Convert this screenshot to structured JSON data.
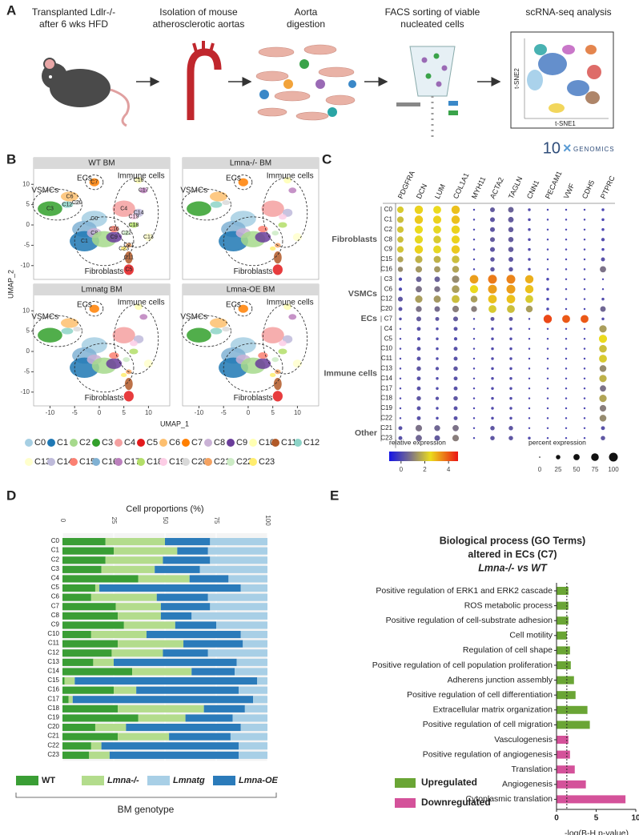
{
  "panel_labels": [
    "A",
    "B",
    "C",
    "D",
    "E"
  ],
  "workflow": {
    "steps": [
      [
        "Transplanted Ldlr-/-",
        "after 6 wks HFD"
      ],
      [
        "Isolation of mouse",
        "atherosclerotic aortas"
      ],
      [
        "Aorta",
        "digestion"
      ],
      [
        "FACS sorting of viable",
        "nucleated cells"
      ],
      [
        "scRNA-seq analysis"
      ]
    ],
    "tsne_xlabel": "t-SNE1",
    "tsne_ylabel": "t-SNE2",
    "logo_number": "10",
    "logo_text": "GENOMICS"
  },
  "umap": {
    "panels": [
      "WT BM",
      "Lmna-/- BM",
      "Lmnatg BM",
      "Lmna-OE BM"
    ],
    "xlabel": "UMAP_1",
    "ylabel": "UMAP_2",
    "xlim": [
      -13,
      14
    ],
    "ylim": [
      -13,
      13
    ],
    "xticks": [
      -10,
      -5,
      0,
      5,
      10
    ],
    "yticks": [
      -10,
      -5,
      0,
      5,
      10
    ],
    "regions": [
      "VSMCs",
      "ECs",
      "Immune cells",
      "Fibroblasts"
    ],
    "clusters": [
      {
        "name": "C0",
        "color": "#a6cfe3"
      },
      {
        "name": "C1",
        "color": "#1f78b4"
      },
      {
        "name": "C2",
        "color": "#a6d98c"
      },
      {
        "name": "C3",
        "color": "#33a02c"
      },
      {
        "name": "C4",
        "color": "#f4a0a0"
      },
      {
        "name": "C5",
        "color": "#e31a1c"
      },
      {
        "name": "C6",
        "color": "#fdbf6f"
      },
      {
        "name": "C7",
        "color": "#ff7f00"
      },
      {
        "name": "C8",
        "color": "#cab2d6"
      },
      {
        "name": "C9",
        "color": "#6a3d9a"
      },
      {
        "name": "C10",
        "color": "#ffffb3"
      },
      {
        "name": "C11",
        "color": "#b15928"
      },
      {
        "name": "C12",
        "color": "#8dd3c7"
      },
      {
        "name": "C13",
        "color": "#ffffcc"
      },
      {
        "name": "C14",
        "color": "#bebada"
      },
      {
        "name": "C15",
        "color": "#fb8072"
      },
      {
        "name": "C16",
        "color": "#80b1d3"
      },
      {
        "name": "C17",
        "color": "#bc80bd"
      },
      {
        "name": "C18",
        "color": "#b3de69"
      },
      {
        "name": "C19",
        "color": "#fccde5"
      },
      {
        "name": "C20",
        "color": "#d9d9d9"
      },
      {
        "name": "C21",
        "color": "#f4a261"
      },
      {
        "name": "C22",
        "color": "#ccebc5"
      },
      {
        "name": "C23",
        "color": "#ffed6f"
      }
    ]
  },
  "dotplot": {
    "genes": [
      "PDGFRA",
      "DCN",
      "LUM",
      "COL1A1",
      "MYH11",
      "ACTA2",
      "TAGLN",
      "CNN1",
      "PECAM1",
      "VWF",
      "CDH5",
      "PTPRC"
    ],
    "color_title": "relative expression",
    "color_lim": [
      -1,
      4.8
    ],
    "color_ticks": [
      0,
      2,
      4
    ],
    "size_title": "percent expression",
    "size_ticks": [
      0,
      25,
      50,
      75,
      100
    ],
    "groups": [
      {
        "label": "Fibroblasts",
        "clusters": [
          "C0",
          "C1",
          "C2",
          "C8",
          "C9",
          "C15",
          "C16"
        ],
        "expression": [
          [
            2.2,
            2.6,
            2.5,
            2.8,
            0,
            0.4,
            0.5,
            0.1,
            0,
            0,
            0,
            0
          ],
          [
            2.0,
            2.7,
            2.6,
            2.8,
            0,
            0.3,
            0.4,
            0.1,
            0,
            0,
            0,
            0
          ],
          [
            2.1,
            2.5,
            2.4,
            2.6,
            0,
            0.3,
            0.4,
            0.1,
            0,
            0,
            0,
            0
          ],
          [
            2.0,
            2.4,
            2.2,
            2.6,
            0,
            0.4,
            0.4,
            0.1,
            0,
            0,
            0,
            0.1
          ],
          [
            2.1,
            2.6,
            2.4,
            2.7,
            0,
            0.3,
            0.4,
            0.1,
            0,
            0,
            0,
            0
          ],
          [
            1.6,
            1.8,
            1.8,
            2.0,
            0,
            0.3,
            0.3,
            0.1,
            0,
            0,
            0,
            0.2
          ],
          [
            1.2,
            1.4,
            1.4,
            1.6,
            0,
            0.3,
            0.3,
            0.1,
            0,
            0,
            0,
            0.8
          ]
        ],
        "percent": [
          [
            55,
            90,
            80,
            90,
            5,
            30,
            40,
            10,
            5,
            5,
            5,
            10
          ],
          [
            55,
            90,
            85,
            90,
            5,
            30,
            40,
            10,
            5,
            5,
            5,
            10
          ],
          [
            55,
            85,
            80,
            90,
            5,
            30,
            35,
            10,
            5,
            5,
            5,
            10
          ],
          [
            50,
            85,
            75,
            85,
            5,
            30,
            35,
            10,
            5,
            5,
            5,
            15
          ],
          [
            55,
            90,
            80,
            90,
            5,
            30,
            35,
            10,
            5,
            5,
            5,
            10
          ],
          [
            45,
            70,
            65,
            75,
            5,
            25,
            30,
            10,
            5,
            5,
            5,
            20
          ],
          [
            35,
            55,
            50,
            60,
            5,
            25,
            25,
            10,
            5,
            5,
            5,
            50
          ]
        ]
      },
      {
        "label": "VSMCs",
        "clusters": [
          "C3",
          "C6",
          "C12",
          "C20"
        ],
        "expression": [
          [
            0,
            0.5,
            0.5,
            1.2,
            3.2,
            3.6,
            3.5,
            3.0,
            0,
            0,
            0,
            0
          ],
          [
            0,
            0.8,
            0.8,
            1.5,
            2.5,
            3.2,
            3.2,
            2.8,
            0,
            0,
            0,
            0
          ],
          [
            0.3,
            1.5,
            1.4,
            2.0,
            1.5,
            2.8,
            2.8,
            2.2,
            0,
            0,
            0,
            0.1
          ],
          [
            0.2,
            0.8,
            0.7,
            1.0,
            1.0,
            2.2,
            2.0,
            1.5,
            0,
            0,
            0,
            0.6
          ]
        ],
        "percent": [
          [
            15,
            40,
            40,
            70,
            95,
            100,
            100,
            90,
            10,
            5,
            5,
            5
          ],
          [
            15,
            50,
            45,
            75,
            85,
            100,
            100,
            90,
            10,
            5,
            5,
            5
          ],
          [
            30,
            70,
            65,
            80,
            60,
            95,
            95,
            80,
            10,
            5,
            5,
            10
          ],
          [
            20,
            45,
            40,
            55,
            45,
            80,
            80,
            60,
            10,
            5,
            5,
            40
          ]
        ]
      },
      {
        "label": "ECs",
        "clusters": [
          "C7"
        ],
        "expression": [
          [
            0.1,
            0.4,
            0.3,
            0.4,
            0,
            0.3,
            0.3,
            0,
            4.2,
            4.0,
            4.0,
            0.1
          ]
        ],
        "percent": [
          [
            10,
            30,
            20,
            30,
            5,
            20,
            20,
            5,
            90,
            80,
            80,
            10
          ]
        ]
      },
      {
        "label": "Immune cells",
        "clusters": [
          "C4",
          "C5",
          "C10",
          "C11",
          "C13",
          "C14",
          "C17",
          "C18",
          "C19",
          "C22"
        ],
        "expression": [
          [
            0,
            0.2,
            0.1,
            0.2,
            0,
            0.1,
            0.1,
            0,
            0,
            0,
            0,
            1.5
          ],
          [
            0,
            0.1,
            0.1,
            0.1,
            0,
            0.1,
            0.1,
            0,
            0,
            0,
            0,
            2.5
          ],
          [
            0,
            0.2,
            0.1,
            0.2,
            0,
            0.1,
            0.1,
            0,
            0,
            0,
            0,
            2.0
          ],
          [
            0,
            0.2,
            0.1,
            0.2,
            0,
            0.1,
            0.1,
            0,
            0,
            0,
            0,
            2.2
          ],
          [
            0,
            0.3,
            0.2,
            0.3,
            0,
            0.1,
            0.1,
            0,
            0,
            0,
            0,
            1.2
          ],
          [
            0,
            0.2,
            0.1,
            0.2,
            0,
            0.1,
            0.1,
            0,
            0,
            0,
            0,
            1.8
          ],
          [
            0,
            0.2,
            0.1,
            0.2,
            0,
            0.1,
            0.1,
            0,
            0,
            0,
            0,
            0.8
          ],
          [
            0,
            0.3,
            0.2,
            0.3,
            0,
            0.1,
            0.1,
            0,
            0,
            0,
            0,
            1.6
          ],
          [
            0,
            0.2,
            0.1,
            0.2,
            0,
            0.1,
            0.1,
            0,
            0,
            0,
            0,
            1.0
          ],
          [
            0,
            0.2,
            0.1,
            0.2,
            0,
            0.1,
            0.1,
            0,
            0,
            0,
            0,
            1.2
          ]
        ],
        "percent": [
          [
            5,
            20,
            10,
            20,
            5,
            10,
            10,
            5,
            5,
            5,
            5,
            70
          ],
          [
            5,
            15,
            10,
            15,
            5,
            10,
            10,
            5,
            5,
            5,
            5,
            85
          ],
          [
            5,
            20,
            10,
            20,
            5,
            10,
            10,
            5,
            5,
            5,
            5,
            75
          ],
          [
            5,
            20,
            10,
            20,
            5,
            10,
            10,
            5,
            5,
            5,
            5,
            80
          ],
          [
            5,
            25,
            15,
            25,
            5,
            10,
            10,
            5,
            5,
            5,
            5,
            60
          ],
          [
            5,
            20,
            10,
            20,
            5,
            10,
            10,
            5,
            5,
            5,
            5,
            70
          ],
          [
            5,
            20,
            10,
            20,
            5,
            10,
            10,
            5,
            5,
            5,
            5,
            50
          ],
          [
            5,
            25,
            15,
            25,
            5,
            10,
            10,
            5,
            5,
            5,
            5,
            70
          ],
          [
            5,
            20,
            10,
            20,
            5,
            10,
            10,
            5,
            5,
            5,
            5,
            55
          ],
          [
            5,
            20,
            10,
            20,
            5,
            10,
            10,
            5,
            5,
            5,
            5,
            60
          ]
        ]
      },
      {
        "label": "Other",
        "clusters": [
          "C21",
          "C23"
        ],
        "expression": [
          [
            0.2,
            0.8,
            0.6,
            0.8,
            0,
            0.3,
            0.3,
            0,
            0,
            0,
            0,
            0.2
          ],
          [
            0.2,
            0.6,
            0.4,
            1.0,
            0,
            0.3,
            0.3,
            0.1,
            0,
            0,
            0,
            0.3
          ]
        ],
        "percent": [
          [
            20,
            55,
            45,
            50,
            5,
            25,
            25,
            5,
            5,
            5,
            5,
            20
          ],
          [
            20,
            50,
            40,
            55,
            5,
            25,
            25,
            10,
            5,
            5,
            5,
            25
          ]
        ]
      }
    ]
  },
  "chart_data": [
    {
      "type": "stacked_barh",
      "title": "Cell proportions (%)",
      "xlabel": "BM genotype",
      "categories": [
        "C0",
        "C1",
        "C2",
        "C3",
        "C4",
        "C5",
        "C6",
        "C7",
        "C8",
        "C9",
        "C10",
        "C11",
        "C12",
        "C13",
        "C14",
        "C15",
        "C16",
        "C17",
        "C18",
        "C19",
        "C20",
        "C21",
        "C22",
        "C23"
      ],
      "xlim": [
        0,
        100
      ],
      "xticks": [
        0,
        25,
        50,
        75,
        100
      ],
      "grid": true,
      "series": [
        {
          "name": "WT",
          "color": "#3a9e35",
          "values": [
            21,
            25,
            21,
            19,
            37,
            16,
            14,
            26,
            27,
            30,
            14,
            27,
            24,
            15,
            34,
            1,
            25,
            3,
            27,
            37,
            16,
            27,
            14,
            13
          ]
        },
        {
          "name": "Lmna-/-",
          "color": "#b3dc8c",
          "values": [
            29,
            31,
            28,
            26,
            25,
            2,
            32,
            22,
            21,
            25,
            27,
            32,
            25,
            10,
            29,
            5,
            11,
            2,
            42,
            23,
            15,
            25,
            5,
            10
          ]
        },
        {
          "name": "Lmna-OE",
          "color": "#2b7bba",
          "values": [
            22,
            15,
            23,
            22,
            19,
            69,
            25,
            24,
            15,
            20,
            46,
            29,
            22,
            60,
            21,
            89,
            50,
            88,
            20,
            23,
            56,
            30,
            67,
            63
          ]
        },
        {
          "name": "Lmnatg",
          "color": "#a8cfe6",
          "values": [
            28,
            29,
            28,
            33,
            19,
            13,
            29,
            28,
            37,
            25,
            13,
            12,
            29,
            15,
            16,
            5,
            14,
            7,
            11,
            17,
            13,
            18,
            14,
            14
          ]
        }
      ]
    },
    {
      "type": "barh",
      "title": [
        "Biological process (GO Terms)",
        "altered in ECs (C7)",
        "Lmna-/- vs WT"
      ],
      "xlabel": "-log(B-H p-value)",
      "categories": [
        "Positive regulation of ERK1 and ERK2 cascade",
        "ROS metabolic process",
        "Positive regulation of cell-substrate adhesion",
        "Cell motility",
        "Regulation of cell shape",
        "Positive regulation of cell population proliferation",
        "Adherens junction assembly",
        "Positive regulation of cell differentiation",
        "Extracellular matrix organization",
        "Positive regulation of cell migration",
        "Vasculogenesis",
        "Positive regulation of angiogenesis",
        "Translation",
        "Angiogenesis",
        "Cytoplasmic translation"
      ],
      "xlim": [
        0,
        10
      ],
      "xticks": [
        0,
        5,
        10
      ],
      "reference_line": 1.3,
      "series": [
        {
          "name": "Upregulated",
          "color": "#6aa535",
          "values": [
            1.5,
            1.5,
            1.5,
            1.3,
            1.7,
            1.8,
            2.2,
            2.4,
            3.9,
            4.2,
            null,
            null,
            null,
            null,
            null
          ]
        },
        {
          "name": "Downregulated",
          "color": "#d4529a",
          "values": [
            null,
            null,
            null,
            null,
            null,
            null,
            null,
            null,
            null,
            null,
            1.5,
            1.7,
            2.3,
            3.7,
            8.7
          ]
        }
      ]
    }
  ]
}
